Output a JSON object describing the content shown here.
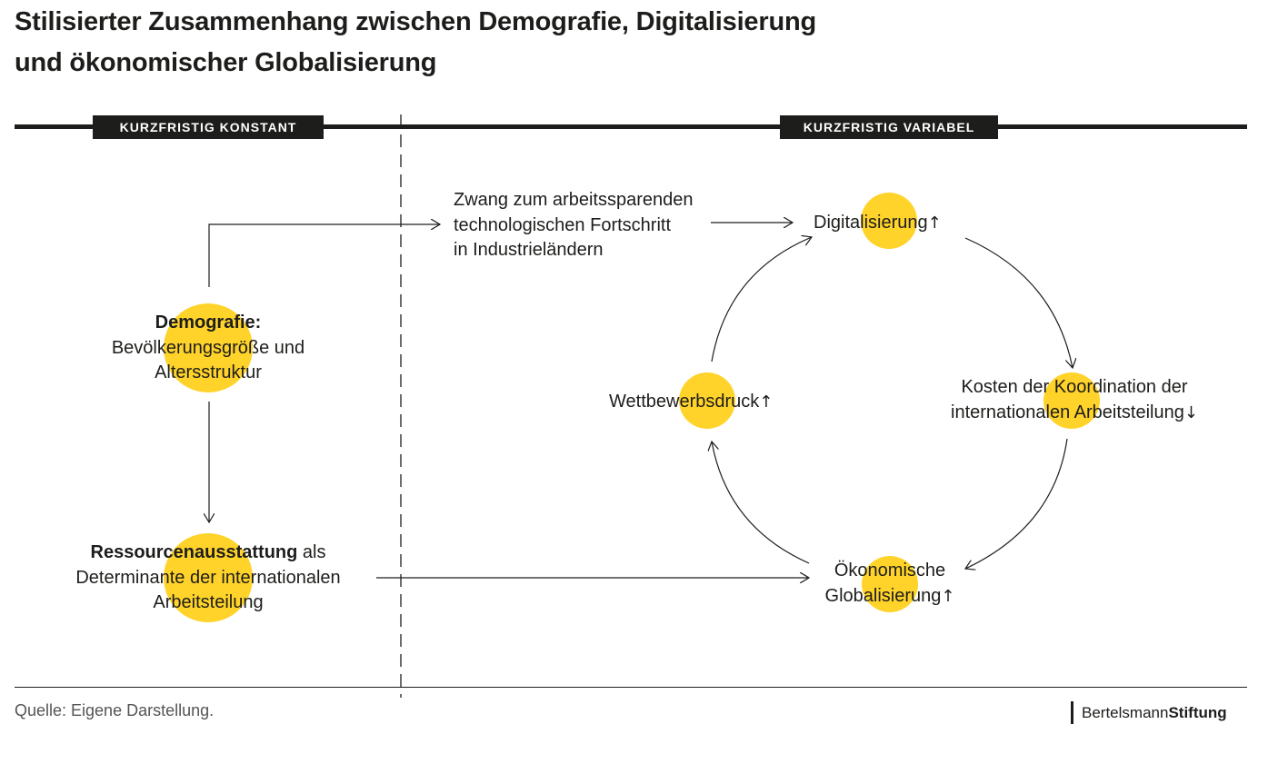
{
  "title": {
    "line1": "Stilisierter Zusammenhang zwischen Demografie, Digitalisierung",
    "line2": "und ökonomischer Globalisierung"
  },
  "bands": {
    "left": "KURZFRISTIG KONSTANT",
    "right": "KURZFRISTIG VARIABEL"
  },
  "nodes": {
    "demografie": {
      "bold": "Demografie:",
      "line2": "Bevölkerungsgröße und",
      "line3": "Altersstruktur"
    },
    "ressourcen": {
      "bold": "Ressourcenausstattung",
      "rest": " als",
      "line2": "Determinante der internationalen",
      "line3": "Arbeitsteilung"
    },
    "zwang": {
      "line1": "Zwang zum arbeitssparenden",
      "line2": "technologischen Fortschritt",
      "line3": "in Industrieländern"
    },
    "digitalisierung": {
      "label": "Digitalisierung",
      "trend": "↑"
    },
    "kosten": {
      "line1": "Kosten der Koordination der",
      "line2": "internationalen Arbeitsteilung",
      "trend": "↓"
    },
    "wettbewerb": {
      "label": "Wettbewerbsdruck",
      "trend": "↑"
    },
    "globalisierung": {
      "line1": "Ökonomische",
      "line2": "Globalisierung",
      "trend": "↑"
    }
  },
  "colors": {
    "accent": "#FFD32A",
    "ink": "#1d1d1b"
  },
  "footer": {
    "source": "Quelle: Eigene Darstellung.",
    "logo_part1": "Bertelsmann",
    "logo_part2": "Stiftung"
  }
}
